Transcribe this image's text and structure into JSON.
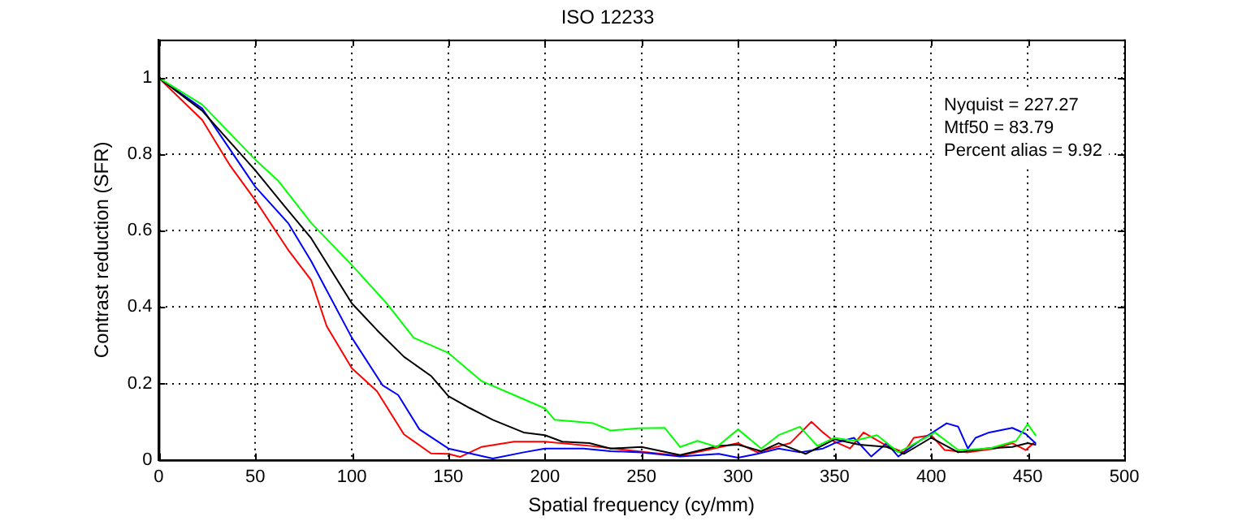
{
  "chart_data": {
    "type": "line",
    "title": "ISO 12233",
    "xlabel": "Spatial frequency (cy/mm)",
    "ylabel": "Contrast reduction (SFR)",
    "annotations": [
      "Nyquist = 227.27",
      "Mtf50 = 83.79",
      "Percent alias = 9.92"
    ],
    "xlim": [
      0,
      500
    ],
    "xticks": [
      0,
      50,
      100,
      150,
      200,
      250,
      300,
      350,
      400,
      450,
      500
    ],
    "ylim": [
      0,
      1.1
    ],
    "yticks": [
      0,
      0.2,
      0.4,
      0.6,
      0.8,
      1
    ],
    "grid": true,
    "line_style": "solid",
    "marker": "none",
    "legend": false,
    "series": [
      {
        "color": "#00ff00",
        "x": [
          0,
          22.5,
          50,
          62,
          79,
          100,
          118,
          132,
          150,
          167,
          184,
          200,
          205,
          217,
          225,
          234,
          248,
          262,
          270,
          279,
          289,
          300,
          312,
          321,
          332,
          341,
          350,
          360,
          372,
          383,
          394,
          402,
          414,
          430,
          444,
          450,
          454
        ],
        "values": [
          1,
          0.93,
          0.786,
          0.73,
          0.62,
          0.51,
          0.41,
          0.32,
          0.28,
          0.207,
          0.17,
          0.135,
          0.105,
          0.1,
          0.096,
          0.077,
          0.083,
          0.084,
          0.034,
          0.05,
          0.034,
          0.08,
          0.03,
          0.065,
          0.087,
          0.037,
          0.058,
          0.05,
          0.065,
          0.02,
          0.05,
          0.072,
          0.026,
          0.03,
          0.05,
          0.094,
          0.065
        ]
      },
      {
        "color": "#000000",
        "x": [
          0,
          22.5,
          50,
          65,
          79,
          100,
          113,
          127,
          141,
          150,
          161,
          173,
          189,
          200,
          209,
          223,
          234,
          250,
          270,
          290,
          300,
          312,
          321,
          335,
          350,
          363,
          377,
          386,
          400,
          414,
          428,
          442,
          450,
          454
        ],
        "values": [
          1,
          0.914,
          0.758,
          0.665,
          0.58,
          0.41,
          0.34,
          0.27,
          0.22,
          0.167,
          0.136,
          0.105,
          0.072,
          0.065,
          0.048,
          0.044,
          0.03,
          0.034,
          0.013,
          0.037,
          0.04,
          0.023,
          0.044,
          0.016,
          0.054,
          0.04,
          0.034,
          0.016,
          0.058,
          0.02,
          0.03,
          0.034,
          0.044,
          0.04
        ]
      },
      {
        "color": "#0000ff",
        "x": [
          0,
          22.5,
          50,
          67,
          79,
          100,
          116,
          124,
          135,
          150,
          173,
          189,
          200,
          220,
          234,
          250,
          270,
          290,
          300,
          310,
          321,
          332,
          344,
          350,
          360,
          369,
          377,
          383,
          394,
          408,
          414,
          419,
          423,
          430,
          442,
          449,
          454
        ],
        "values": [
          1,
          0.92,
          0.715,
          0.62,
          0.52,
          0.32,
          0.195,
          0.17,
          0.08,
          0.03,
          0.004,
          0.02,
          0.03,
          0.03,
          0.023,
          0.02,
          0.009,
          0.016,
          0.006,
          0.016,
          0.03,
          0.02,
          0.03,
          0.044,
          0.058,
          0.009,
          0.044,
          0.009,
          0.05,
          0.096,
          0.087,
          0.03,
          0.058,
          0.072,
          0.084,
          0.068,
          0.044
        ]
      },
      {
        "color": "#ff0000",
        "x": [
          0,
          22.5,
          37,
          50,
          67,
          79,
          87,
          100,
          113,
          127,
          141,
          150,
          156,
          167,
          184,
          200,
          223,
          242,
          270,
          284,
          300,
          310,
          327,
          338,
          344,
          350,
          358,
          365,
          377,
          386,
          391,
          400,
          407,
          419,
          433,
          442,
          449,
          453
        ],
        "values": [
          1,
          0.89,
          0.77,
          0.68,
          0.55,
          0.47,
          0.35,
          0.24,
          0.18,
          0.067,
          0.017,
          0.016,
          0.008,
          0.034,
          0.048,
          0.048,
          0.037,
          0.026,
          0.011,
          0.026,
          0.044,
          0.02,
          0.044,
          0.1,
          0.072,
          0.048,
          0.03,
          0.072,
          0.037,
          0.02,
          0.058,
          0.065,
          0.026,
          0.02,
          0.03,
          0.044,
          0.026,
          0.044
        ]
      }
    ]
  }
}
